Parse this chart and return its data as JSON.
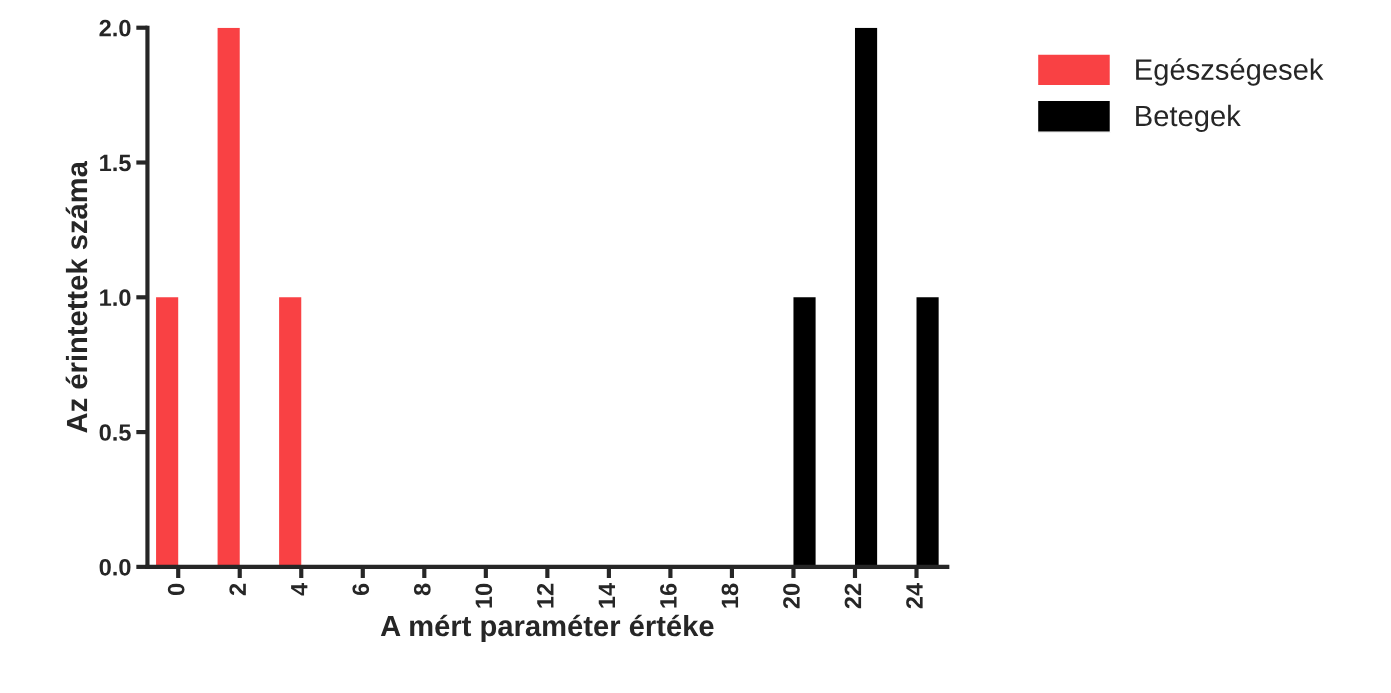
{
  "chart_data": {
    "type": "bar",
    "xlabel": "A mért paraméter értéke",
    "ylabel": "Az érintettek száma",
    "categories": [
      "0",
      "2",
      "4",
      "6",
      "8",
      "10",
      "12",
      "14",
      "16",
      "18",
      "20",
      "22",
      "24"
    ],
    "series": [
      {
        "name": "Egészségesek",
        "color": "#f94144",
        "values": [
          1,
          2,
          1,
          0,
          0,
          0,
          0,
          0,
          0,
          0,
          0,
          0,
          0
        ]
      },
      {
        "name": "Betegek",
        "color": "#000000",
        "values": [
          0,
          0,
          0,
          0,
          0,
          0,
          0,
          0,
          0,
          0,
          1,
          2,
          1
        ]
      }
    ],
    "ylim": [
      0,
      2
    ],
    "yticks": [
      {
        "value": 0,
        "label": "0.0"
      },
      {
        "value": 0.5,
        "label": "0.5"
      },
      {
        "value": 1,
        "label": "1.0"
      },
      {
        "value": 1.5,
        "label": "1.5"
      },
      {
        "value": 2,
        "label": "2.0"
      }
    ],
    "grid": false,
    "legend": "top right"
  }
}
